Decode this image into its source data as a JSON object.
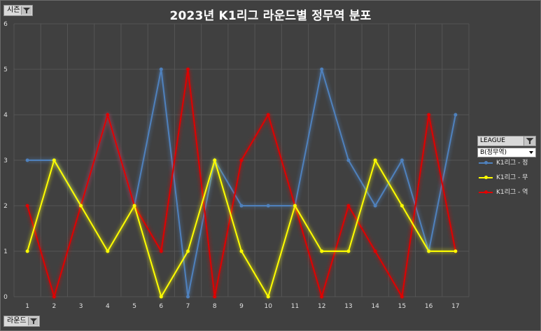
{
  "title": "2023년 K1리그 라운드별 정무역 분포",
  "filters": {
    "season": "시즌",
    "round": "라운드"
  },
  "legend": {
    "header": "LEAGUE",
    "selected": "B(정무역)"
  },
  "colors": {
    "jeong": "#4f81bd",
    "mu": "#ffff00",
    "yeok": "#e00000"
  },
  "chart_data": {
    "type": "line",
    "title": "2023년 K1리그 라운드별 정무역 분포",
    "categories": [
      "1",
      "2",
      "3",
      "4",
      "5",
      "6",
      "7",
      "8",
      "9",
      "10",
      "11",
      "12",
      "13",
      "14",
      "15",
      "16",
      "17"
    ],
    "ylim": [
      0,
      6
    ],
    "yticks": [
      "0",
      "1",
      "2",
      "3",
      "4",
      "5",
      "6"
    ],
    "grid": true,
    "legend_position": "right",
    "series": [
      {
        "name": "K1리그 - 정",
        "color": "#4f81bd",
        "values": [
          3,
          3,
          2,
          4,
          2,
          5,
          0,
          3,
          2,
          2,
          2,
          5,
          3,
          2,
          3,
          1,
          4
        ]
      },
      {
        "name": "K1리그 - 무",
        "color": "#ffff00",
        "values": [
          1,
          3,
          2,
          1,
          2,
          0,
          1,
          3,
          1,
          0,
          2,
          1,
          1,
          3,
          2,
          1,
          1
        ]
      },
      {
        "name": "K1리그 - 역",
        "color": "#e00000",
        "values": [
          2,
          0,
          2,
          4,
          2,
          1,
          5,
          0,
          3,
          4,
          2,
          0,
          2,
          1,
          0,
          4,
          1
        ]
      }
    ]
  }
}
